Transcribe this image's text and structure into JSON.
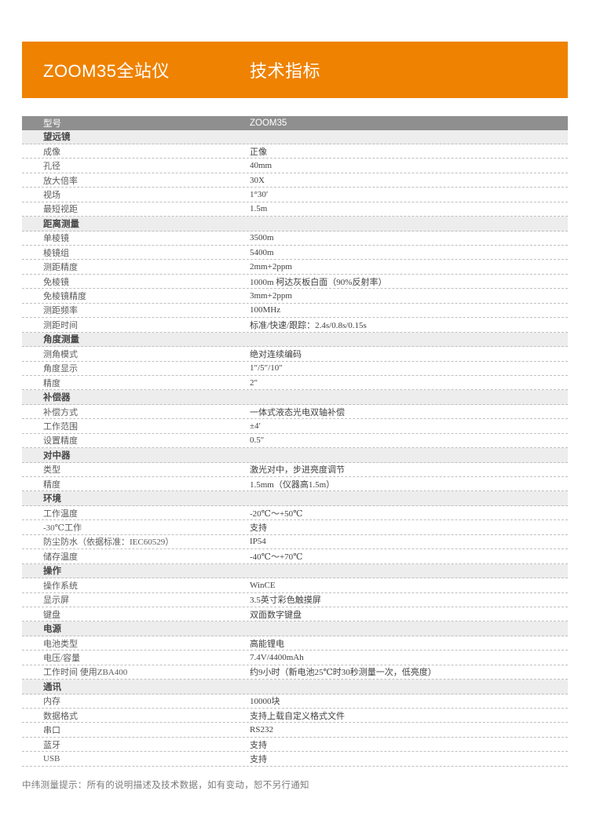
{
  "banner": {
    "title": "ZOOM35全站仪",
    "subtitle": "技术指标"
  },
  "table": {
    "header": {
      "label": "型号",
      "value": "ZOOM35"
    },
    "rows": [
      {
        "type": "section",
        "label": "望远镜"
      },
      {
        "type": "data",
        "label": "成像",
        "value": "正像"
      },
      {
        "type": "data",
        "label": "孔径",
        "value": "40mm"
      },
      {
        "type": "data",
        "label": "放大倍率",
        "value": "30X"
      },
      {
        "type": "data",
        "label": "视场",
        "value": "1°30′"
      },
      {
        "type": "data",
        "label": "最短视距",
        "value": "1.5m"
      },
      {
        "type": "section",
        "label": "距离测量"
      },
      {
        "type": "data",
        "label": "单棱镜",
        "value": "3500m"
      },
      {
        "type": "data",
        "label": "棱镜组",
        "value": "5400m"
      },
      {
        "type": "data",
        "label": "测距精度",
        "value": "2mm+2ppm"
      },
      {
        "type": "data",
        "label": "免棱镜",
        "value": "1000m 柯达灰板白面（90%反射率）"
      },
      {
        "type": "data",
        "label": "免棱镜精度",
        "value": "3mm+2ppm"
      },
      {
        "type": "data",
        "label": "测距频率",
        "value": "100MHz"
      },
      {
        "type": "data",
        "label": "测距时间",
        "value": "标准/快速/跟踪：2.4s/0.8s/0.15s"
      },
      {
        "type": "section",
        "label": "角度测量"
      },
      {
        "type": "data",
        "label": "测角模式",
        "value": "绝对连续编码"
      },
      {
        "type": "data",
        "label": "角度显示",
        "value": "1″/5″/10″"
      },
      {
        "type": "data",
        "label": "精度",
        "value": "2″"
      },
      {
        "type": "section",
        "label": "补偿器"
      },
      {
        "type": "data",
        "label": "补偿方式",
        "value": "一体式液态光电双轴补偿"
      },
      {
        "type": "data",
        "label": "工作范围",
        "value": "±4′"
      },
      {
        "type": "data",
        "label": "设置精度",
        "value": "0.5″"
      },
      {
        "type": "section",
        "label": "对中器"
      },
      {
        "type": "data",
        "label": "类型",
        "value": "激光对中，步进亮度调节"
      },
      {
        "type": "data",
        "label": "精度",
        "value": "1.5mm（仪器高1.5m）"
      },
      {
        "type": "section",
        "label": "环境"
      },
      {
        "type": "data",
        "label": "工作温度",
        "value": "-20℃～+50℃"
      },
      {
        "type": "data",
        "label": "-30℃工作",
        "value": "支持"
      },
      {
        "type": "data",
        "label": "防尘防水（依据标准：IEC60529）",
        "value": "IP54"
      },
      {
        "type": "data",
        "label": "储存温度",
        "value": "-40℃～+70℃"
      },
      {
        "type": "section",
        "label": "操作"
      },
      {
        "type": "data",
        "label": "操作系统",
        "value": "WinCE"
      },
      {
        "type": "data",
        "label": "显示屏",
        "value": "3.5英寸彩色触摸屏"
      },
      {
        "type": "data",
        "label": "键盘",
        "value": "双面数字键盘"
      },
      {
        "type": "section",
        "label": "电源"
      },
      {
        "type": "data",
        "label": "电池类型",
        "value": "高能锂电"
      },
      {
        "type": "data",
        "label": "电压/容量",
        "value": "7.4V/4400mAh"
      },
      {
        "type": "data",
        "label": "工作时间 使用ZBA400",
        "value": "约9小时（新电池25℃时30秒测量一次，低亮度）"
      },
      {
        "type": "section",
        "label": "通讯"
      },
      {
        "type": "data",
        "label": "内存",
        "value": "10000块"
      },
      {
        "type": "data",
        "label": "数据格式",
        "value": "支持上载自定义格式文件"
      },
      {
        "type": "data",
        "label": "串口",
        "value": "RS232"
      },
      {
        "type": "data",
        "label": "蓝牙",
        "value": "支持"
      },
      {
        "type": "data",
        "label": "USB",
        "value": "支持"
      }
    ]
  },
  "footer": {
    "note": "中纬测量提示：所有的说明描述及技术数据，如有变动，恕不另行通知"
  },
  "colors": {
    "accent": "#EF8200",
    "header_bg": "#8F8F8F",
    "section_bg": "#EDEDED",
    "dash": "#BFBFBF"
  }
}
